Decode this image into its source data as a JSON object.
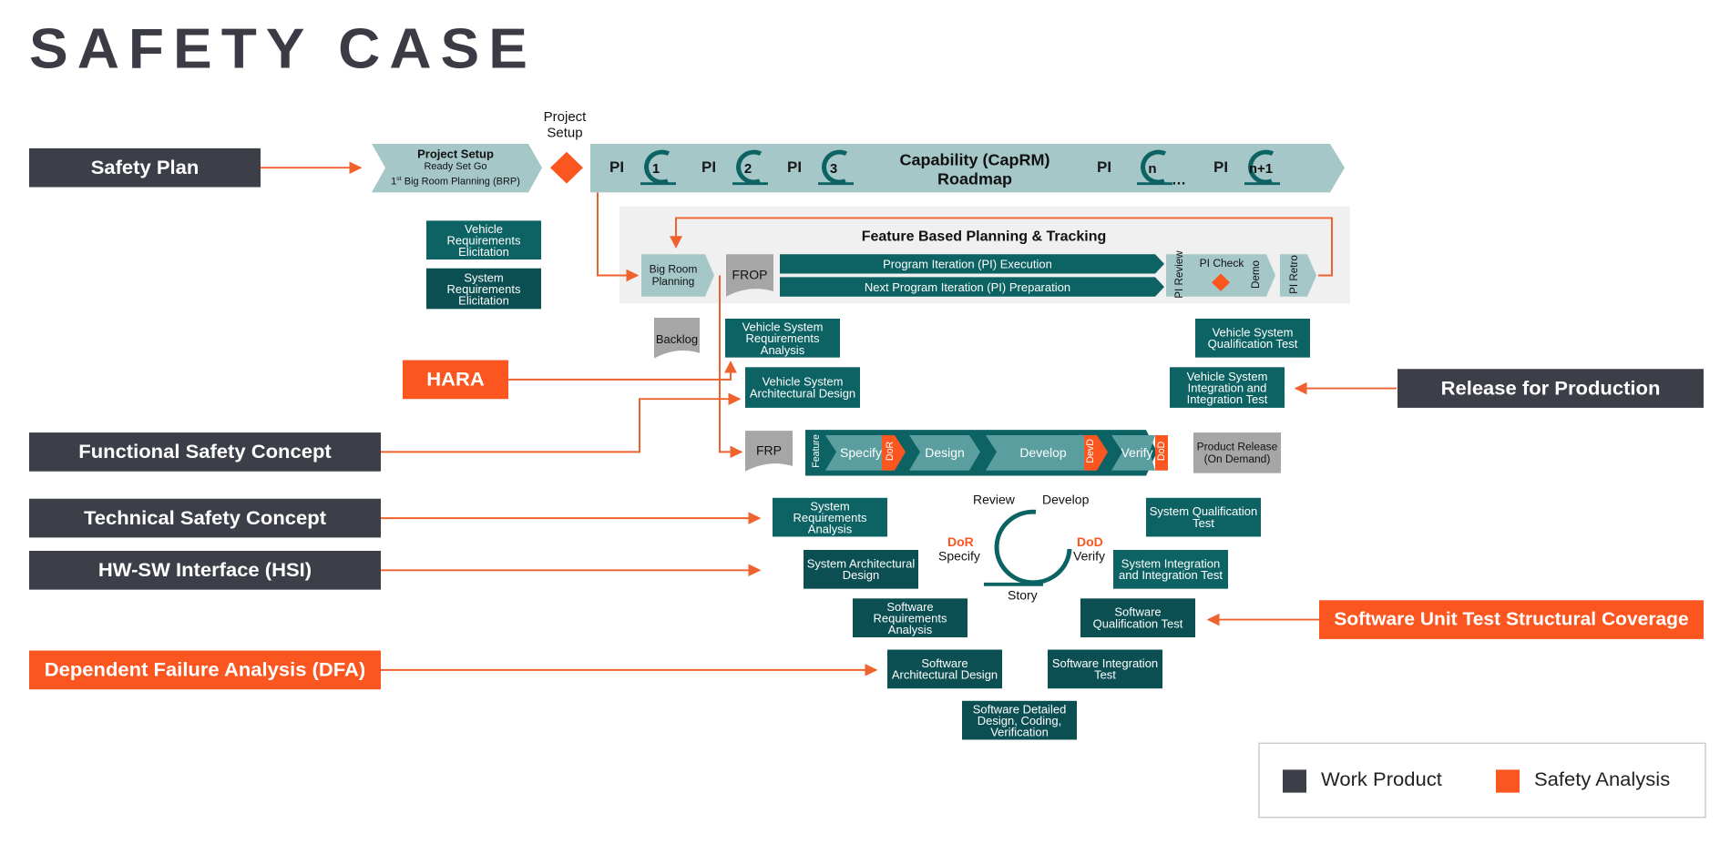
{
  "title": "SAFETY CASE",
  "colors": {
    "work_product": "#3d3f48",
    "safety_analysis": "#fb5520",
    "teal": "#0d6363",
    "teal_dark": "#0b4f52",
    "light_teal": "#a5c7c8",
    "arrow": "#f0622d"
  },
  "left_items": {
    "safety_plan": "Safety Plan",
    "hara": "HARA",
    "functional_safety_concept": "Functional Safety Concept",
    "technical_safety_concept": "Technical Safety Concept",
    "hsi": "HW-SW Interface (HSI)",
    "dfa": "Dependent Failure Analysis (DFA)"
  },
  "right_items": {
    "release": "Release for Production",
    "sw_unit_test": "Software Unit Test Structural Coverage"
  },
  "roadmap": {
    "setup_title": "Project Setup",
    "setup_sub": "Ready Set Go",
    "setup_brp_pre": "1",
    "setup_brp_sup": "st",
    "setup_brp_post": " Big Room Planning (BRP)",
    "setup_label_top": "Project Setup",
    "pi": "PI",
    "pi_numbers": [
      "1",
      "2",
      "3",
      "n",
      "n+1"
    ],
    "capability_line1": "Capability (CapRM)",
    "capability_line2": "Roadmap",
    "ellipsis": "…"
  },
  "fbpt": {
    "title": "Feature Based Planning & Tracking",
    "big_room": "Big Room Planning",
    "frop": "FROP",
    "pi_execution": "Program Iteration (PI) Execution",
    "pi_preparation": "Next Program Iteration (PI) Preparation",
    "pi_review": "PI Review",
    "pi_check": "PI Check",
    "demo": "Demo",
    "pi_retro": "PI Retro"
  },
  "elicitation": {
    "vehicle": "Vehicle Requirements Elicitation",
    "system": "System Requirements Elicitation"
  },
  "backlog": "Backlog",
  "frp": "FRP",
  "vehicle_v": {
    "req_analysis": "Vehicle System Requirements Analysis",
    "arch_design": "Vehicle System Architectural Design",
    "qual_test": "Vehicle System Qualification Test",
    "int_test": "Vehicle System Integration and Integration Test"
  },
  "feature_flow": {
    "feature": "Feature",
    "specify": "Specify",
    "dor": "DoR",
    "design": "Design",
    "develop": "Develop",
    "devd": "DevD",
    "verify": "Verify",
    "dod": "DoD",
    "product_release": "Product Release (On Demand)"
  },
  "system_v": {
    "sys_req": "System Requirements Analysis",
    "sys_arch": "System Architectural Design",
    "sw_req": "Software Requirements Analysis",
    "sw_arch": "Software Architectural Design",
    "sw_detail": "Software Detailed Design, Coding, Verification",
    "sw_int": "Software Integration Test",
    "sw_qual": "Software Qualification Test",
    "sys_int": "System Integration and Integration Test",
    "sys_qual": "System Qualification Test"
  },
  "cycle": {
    "review": "Review",
    "develop": "Develop",
    "dor": "DoR",
    "specify": "Specify",
    "dod": "DoD",
    "verify": "Verify",
    "story": "Story"
  },
  "legend": {
    "work_product": "Work Product",
    "safety_analysis": "Safety Analysis"
  }
}
